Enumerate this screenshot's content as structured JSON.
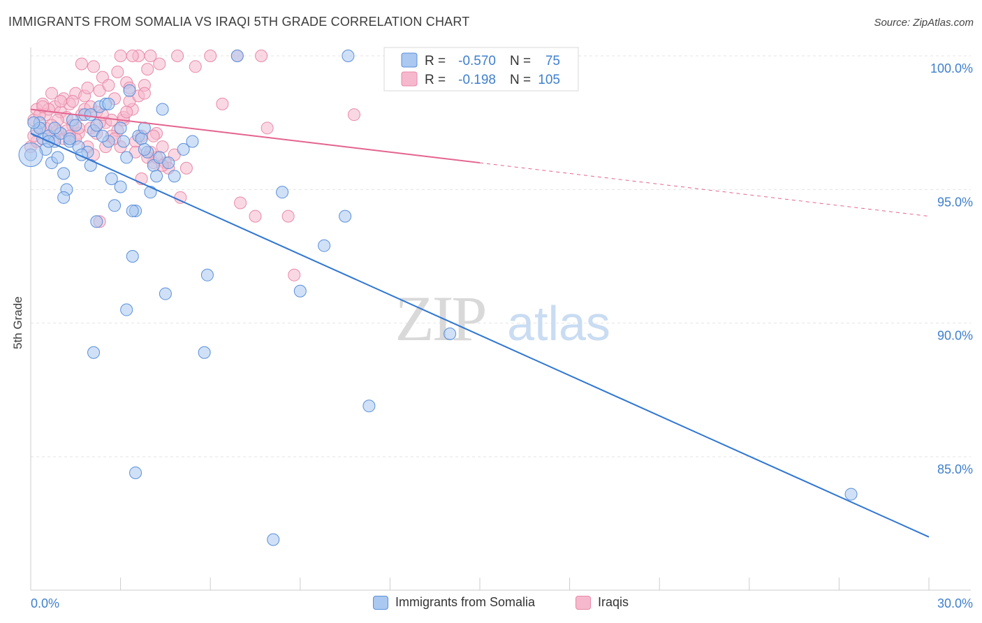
{
  "title": "IMMIGRANTS FROM SOMALIA VS IRAQI 5TH GRADE CORRELATION CHART",
  "source": "Source: ZipAtlas.com",
  "watermark": {
    "zip": "ZIP",
    "atlas": "atlas"
  },
  "legend_top": {
    "rows": [
      {
        "r_label": "R =",
        "r_value": "-0.570",
        "n_label": "N =",
        "n_value": "75"
      },
      {
        "r_label": "R =",
        "r_value": "-0.198",
        "n_label": "N =",
        "n_value": "105"
      }
    ]
  },
  "legend_bottom": {
    "items": [
      {
        "label": "Immigrants from Somalia"
      },
      {
        "label": "Iraqis"
      }
    ]
  },
  "colors": {
    "blue_fill": "#aac8f0",
    "blue_stroke": "#5b8fd8",
    "blue_line": "#2f76d2",
    "pink_fill": "#f6b8cc",
    "pink_stroke": "#e88aa8",
    "pink_line": "#e4638f",
    "tick_label": "#3f7fce",
    "grid": "#e3e3e3",
    "axis": "#cccccc"
  },
  "chart_data": {
    "type": "scatter",
    "title": "IMMIGRANTS FROM SOMALIA VS IRAQI 5TH GRADE CORRELATION CHART",
    "xlabel": "",
    "ylabel": "5th Grade",
    "xlim": [
      0,
      30
    ],
    "ylim": [
      80.5,
      100.8
    ],
    "x_tick_labels": [
      {
        "value": 0,
        "label": "0.0%"
      },
      {
        "value": 30,
        "label": "30.0%"
      }
    ],
    "y_tick_labels": [
      {
        "value": 100,
        "label": "100.0%"
      },
      {
        "value": 95,
        "label": "95.0%"
      },
      {
        "value": 90,
        "label": "90.0%"
      },
      {
        "value": 85,
        "label": "85.0%"
      }
    ],
    "series": [
      {
        "name": "Immigrants from Somalia",
        "color": "blue",
        "trend": {
          "x0": 0,
          "y0": 97.1,
          "x1": 30,
          "y1": 82.0,
          "dashed_from": null
        },
        "points": [
          [
            0.0,
            96.3
          ],
          [
            0.2,
            97.2
          ],
          [
            0.3,
            97.5
          ],
          [
            0.4,
            96.9
          ],
          [
            0.5,
            96.5
          ],
          [
            0.6,
            97.0
          ],
          [
            0.7,
            96.0
          ],
          [
            0.8,
            96.8
          ],
          [
            1.0,
            97.1
          ],
          [
            1.1,
            95.6
          ],
          [
            1.2,
            95.0
          ],
          [
            1.3,
            96.8
          ],
          [
            1.4,
            97.6
          ],
          [
            1.6,
            96.6
          ],
          [
            1.8,
            97.8
          ],
          [
            1.9,
            96.4
          ],
          [
            2.0,
            95.9
          ],
          [
            2.1,
            97.2
          ],
          [
            2.2,
            97.4
          ],
          [
            2.3,
            98.1
          ],
          [
            2.5,
            98.2
          ],
          [
            2.6,
            96.8
          ],
          [
            2.7,
            95.4
          ],
          [
            2.8,
            94.4
          ],
          [
            3.0,
            95.1
          ],
          [
            3.1,
            96.8
          ],
          [
            3.2,
            96.2
          ],
          [
            3.3,
            98.7
          ],
          [
            3.4,
            92.5
          ],
          [
            3.5,
            94.2
          ],
          [
            3.6,
            97.0
          ],
          [
            3.7,
            96.9
          ],
          [
            3.8,
            97.3
          ],
          [
            3.9,
            96.4
          ],
          [
            4.0,
            94.9
          ],
          [
            4.1,
            95.9
          ],
          [
            4.2,
            95.5
          ],
          [
            4.3,
            96.2
          ],
          [
            4.4,
            98.0
          ],
          [
            4.5,
            91.1
          ],
          [
            4.8,
            95.5
          ],
          [
            5.1,
            96.5
          ],
          [
            5.4,
            96.8
          ],
          [
            2.1,
            88.9
          ],
          [
            3.2,
            90.5
          ],
          [
            3.5,
            84.4
          ],
          [
            5.9,
            91.8
          ],
          [
            5.8,
            88.9
          ],
          [
            6.9,
            100.0
          ],
          [
            8.4,
            94.9
          ],
          [
            9.0,
            91.2
          ],
          [
            9.8,
            92.9
          ],
          [
            10.5,
            94.0
          ],
          [
            10.6,
            100.0
          ],
          [
            11.3,
            86.9
          ],
          [
            14.0,
            89.6
          ],
          [
            27.4,
            83.6
          ],
          [
            8.1,
            81.9
          ],
          [
            1.1,
            94.7
          ],
          [
            2.2,
            93.8
          ],
          [
            3.4,
            94.2
          ],
          [
            0.3,
            97.3
          ],
          [
            0.9,
            96.2
          ],
          [
            1.5,
            97.4
          ],
          [
            2.0,
            97.8
          ],
          [
            2.6,
            98.2
          ],
          [
            3.0,
            97.3
          ],
          [
            3.8,
            96.5
          ],
          [
            0.1,
            97.5
          ],
          [
            0.6,
            96.8
          ],
          [
            1.7,
            96.3
          ],
          [
            2.4,
            97.0
          ],
          [
            0.8,
            97.3
          ],
          [
            1.3,
            96.9
          ],
          [
            4.6,
            96.0
          ]
        ]
      },
      {
        "name": "Iraqis",
        "color": "pink",
        "trend": {
          "x0": 0,
          "y0": 98.0,
          "x1": 30,
          "y1": 94.0,
          "dashed_from": 15
        },
        "points": [
          [
            0.0,
            96.6
          ],
          [
            0.1,
            97.6
          ],
          [
            0.2,
            98.0
          ],
          [
            0.3,
            97.3
          ],
          [
            0.4,
            98.2
          ],
          [
            0.5,
            97.8
          ],
          [
            0.6,
            97.0
          ],
          [
            0.7,
            98.6
          ],
          [
            0.8,
            98.1
          ],
          [
            0.9,
            97.2
          ],
          [
            1.0,
            97.9
          ],
          [
            1.1,
            98.4
          ],
          [
            1.2,
            97.7
          ],
          [
            1.3,
            98.2
          ],
          [
            1.4,
            97.4
          ],
          [
            1.5,
            98.6
          ],
          [
            1.6,
            97.1
          ],
          [
            1.7,
            97.8
          ],
          [
            1.8,
            98.0
          ],
          [
            1.9,
            96.6
          ],
          [
            2.0,
            97.3
          ],
          [
            2.1,
            99.6
          ],
          [
            2.2,
            97.9
          ],
          [
            2.3,
            98.7
          ],
          [
            2.4,
            99.2
          ],
          [
            2.5,
            97.5
          ],
          [
            2.6,
            98.9
          ],
          [
            2.7,
            97.6
          ],
          [
            2.8,
            98.4
          ],
          [
            2.9,
            97.2
          ],
          [
            3.0,
            100.0
          ],
          [
            3.1,
            97.6
          ],
          [
            3.2,
            99.0
          ],
          [
            3.3,
            98.8
          ],
          [
            3.4,
            98.0
          ],
          [
            3.5,
            96.8
          ],
          [
            3.6,
            100.0
          ],
          [
            3.7,
            97.0
          ],
          [
            3.8,
            98.9
          ],
          [
            3.9,
            99.5
          ],
          [
            4.0,
            100.0
          ],
          [
            4.1,
            96.0
          ],
          [
            4.2,
            96.2
          ],
          [
            4.3,
            99.7
          ],
          [
            4.4,
            96.6
          ],
          [
            4.5,
            96.0
          ],
          [
            4.6,
            95.8
          ],
          [
            4.8,
            96.3
          ],
          [
            4.9,
            100.0
          ],
          [
            5.0,
            94.7
          ],
          [
            5.2,
            95.8
          ],
          [
            5.5,
            99.6
          ],
          [
            6.0,
            100.0
          ],
          [
            6.4,
            98.2
          ],
          [
            6.9,
            100.0
          ],
          [
            7.0,
            94.5
          ],
          [
            7.5,
            94.0
          ],
          [
            7.7,
            100.0
          ],
          [
            7.9,
            97.3
          ],
          [
            8.6,
            94.0
          ],
          [
            8.8,
            91.8
          ],
          [
            10.8,
            97.8
          ],
          [
            0.3,
            97.8
          ],
          [
            0.6,
            98.0
          ],
          [
            0.9,
            97.6
          ],
          [
            1.1,
            96.9
          ],
          [
            1.4,
            98.3
          ],
          [
            1.7,
            99.7
          ],
          [
            2.0,
            98.1
          ],
          [
            2.3,
            97.5
          ],
          [
            2.7,
            97.0
          ],
          [
            3.0,
            96.6
          ],
          [
            3.3,
            98.3
          ],
          [
            3.7,
            95.4
          ],
          [
            4.0,
            96.4
          ],
          [
            0.2,
            96.8
          ],
          [
            0.5,
            97.3
          ],
          [
            0.8,
            96.9
          ],
          [
            1.2,
            97.2
          ],
          [
            1.5,
            96.9
          ],
          [
            1.8,
            98.5
          ],
          [
            2.1,
            96.3
          ],
          [
            2.4,
            97.8
          ],
          [
            2.8,
            96.9
          ],
          [
            3.1,
            97.7
          ],
          [
            3.4,
            100.0
          ],
          [
            3.6,
            98.5
          ],
          [
            3.9,
            96.2
          ],
          [
            4.2,
            97.1
          ],
          [
            2.3,
            93.8
          ],
          [
            0.1,
            97.0
          ],
          [
            0.4,
            98.1
          ],
          [
            0.7,
            97.4
          ],
          [
            1.0,
            98.3
          ],
          [
            1.3,
            97.0
          ],
          [
            1.6,
            97.3
          ],
          [
            1.9,
            98.8
          ],
          [
            2.2,
            97.1
          ],
          [
            2.5,
            96.6
          ],
          [
            2.9,
            99.4
          ],
          [
            3.2,
            97.9
          ],
          [
            3.5,
            96.4
          ],
          [
            3.8,
            98.6
          ],
          [
            4.1,
            97.0
          ],
          [
            4.4,
            95.9
          ]
        ]
      }
    ]
  }
}
